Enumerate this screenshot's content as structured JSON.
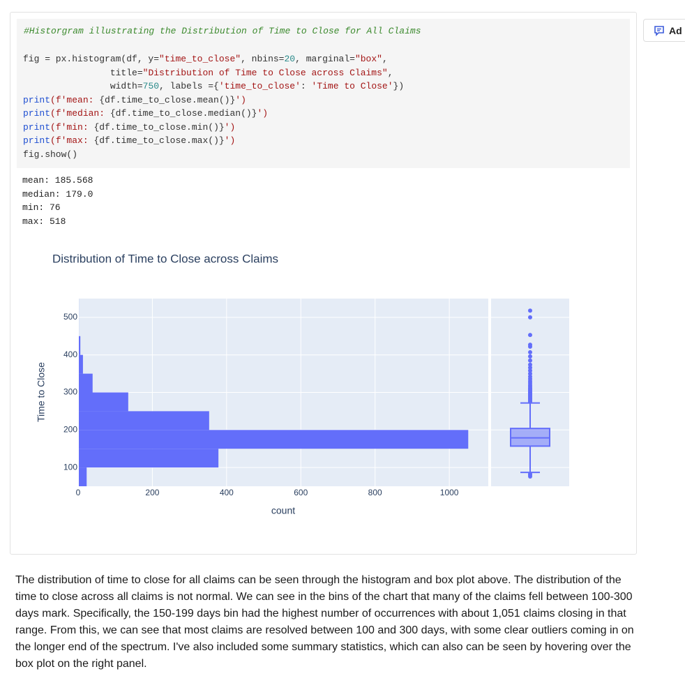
{
  "button": "Ad",
  "code": {
    "comment": "#Historgram illustrating the Distribution of Time to Close for All Claims",
    "lines": [
      [
        {
          "text": "fig = px.histogram(df, y=",
          "color": "#333333"
        },
        {
          "text": "\"time_to_close\"",
          "color": "#a31515"
        },
        {
          "text": ", nbins=",
          "color": "#333333"
        },
        {
          "text": "20",
          "color": "#2a8a8a"
        },
        {
          "text": ", marginal=",
          "color": "#333333"
        },
        {
          "text": "\"box\"",
          "color": "#a31515"
        },
        {
          "text": ",",
          "color": "#333333"
        }
      ],
      [
        {
          "text": "                title=",
          "color": "#333333"
        },
        {
          "text": "\"Distribution of Time to Close across Claims\"",
          "color": "#a31515"
        },
        {
          "text": ",",
          "color": "#333333"
        }
      ],
      [
        {
          "text": "                width=",
          "color": "#333333"
        },
        {
          "text": "750",
          "color": "#2a8a8a"
        },
        {
          "text": ", labels ={",
          "color": "#333333"
        },
        {
          "text": "'time_to_close'",
          "color": "#a31515"
        },
        {
          "text": ": ",
          "color": "#333333"
        },
        {
          "text": "'Time to Close'",
          "color": "#a31515"
        },
        {
          "text": "})",
          "color": "#333333"
        }
      ],
      [
        {
          "text": "print",
          "color": "#1f4fd1"
        },
        {
          "text": "(f'mean: ",
          "color": "#a31515"
        },
        {
          "text": "{df.time_to_close.mean()}",
          "color": "#333333"
        },
        {
          "text": "')",
          "color": "#a31515"
        }
      ],
      [
        {
          "text": "print",
          "color": "#1f4fd1"
        },
        {
          "text": "(f'median: ",
          "color": "#a31515"
        },
        {
          "text": "{df.time_to_close.median()}",
          "color": "#333333"
        },
        {
          "text": "')",
          "color": "#a31515"
        }
      ],
      [
        {
          "text": "print",
          "color": "#1f4fd1"
        },
        {
          "text": "(f'min: ",
          "color": "#a31515"
        },
        {
          "text": "{df.time_to_close.min()}",
          "color": "#333333"
        },
        {
          "text": "')",
          "color": "#a31515"
        }
      ],
      [
        {
          "text": "print",
          "color": "#1f4fd1"
        },
        {
          "text": "(f'max: ",
          "color": "#a31515"
        },
        {
          "text": "{df.time_to_close.max()}",
          "color": "#333333"
        },
        {
          "text": "')",
          "color": "#a31515"
        }
      ],
      [
        {
          "text": "fig.show()",
          "color": "#333333"
        }
      ]
    ]
  },
  "output": [
    "mean: 185.568",
    "median: 179.0",
    "min: 76",
    "max: 518"
  ],
  "chart_data": {
    "type": "histogram",
    "orientation": "h",
    "title": "Distribution of Time to Close across Claims",
    "xlabel": "count",
    "ylabel": "Time to Close",
    "color": "#636efa",
    "bins": [
      50,
      100,
      150,
      200,
      250,
      300,
      350,
      400,
      450,
      500,
      550
    ],
    "values": [
      23,
      378,
      1051,
      353,
      135,
      39,
      13,
      6,
      2,
      2
    ],
    "xlim": [
      0,
      1105
    ],
    "xticks": [
      0,
      200,
      400,
      600,
      800,
      1000
    ],
    "ylim": [
      50,
      550
    ],
    "yticks": [
      100,
      200,
      300,
      400,
      500
    ],
    "grid": true,
    "box": {
      "lowerfence": 87,
      "q1": 157,
      "median": 179,
      "q3": 204,
      "upperfence": 272,
      "outliers": [
        76,
        80,
        83,
        275,
        278,
        280,
        283,
        285,
        288,
        290,
        293,
        295,
        298,
        300,
        303,
        306,
        309,
        312,
        316,
        320,
        325,
        330,
        336,
        342,
        350,
        358,
        366,
        374,
        385,
        396,
        407,
        422,
        427,
        453,
        500,
        518
      ]
    }
  },
  "paragraph": "The distribution of time to close for all claims can be seen through the histogram and box plot above. The distribution of the time to close across all claims is not normal. We can see in the bins of the chart that many of the claims fell between 100-300 days mark. Specifically, the 150-199 days bin had the highest number of occurrences with about 1,051 claims closing in that range. From this, we can see that most claims are resolved between 100 and 300 days, with some clear outliers coming in on the longer end of the spectrum. I've also included some summary statistics, which can also can be seen by hovering over the box plot on the right panel."
}
